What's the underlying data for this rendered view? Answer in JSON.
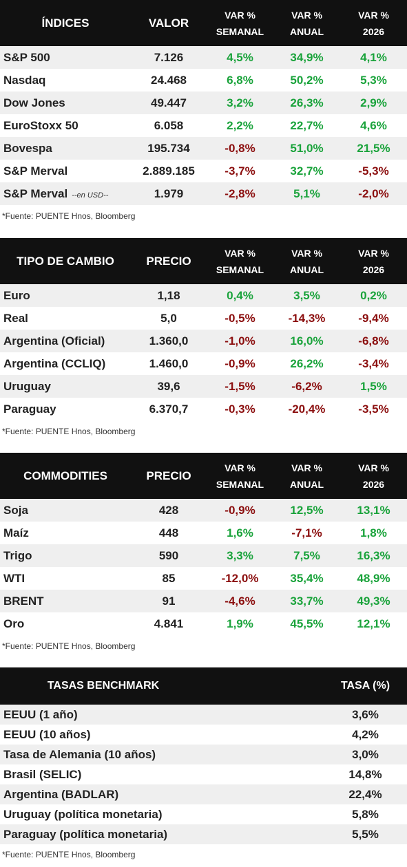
{
  "colors": {
    "header_bg": "#111111",
    "positive": "#1aa33b",
    "negative": "#8b0e0e",
    "stripe": "#efefef"
  },
  "indices": {
    "headers": [
      "ÍNDICES",
      "VALOR",
      "VAR %",
      "SEMANAL",
      "VAR %",
      "ANUAL",
      "VAR %",
      "2026"
    ],
    "rows": [
      {
        "name": "S&P 500",
        "note": "",
        "value": "7.126",
        "weekly": "4,5%",
        "annual": "34,9%",
        "ytd": "4,1%"
      },
      {
        "name": "Nasdaq",
        "note": "",
        "value": "24.468",
        "weekly": "6,8%",
        "annual": "50,2%",
        "ytd": "5,3%"
      },
      {
        "name": "Dow Jones",
        "note": "",
        "value": "49.447",
        "weekly": "3,2%",
        "annual": "26,3%",
        "ytd": "2,9%"
      },
      {
        "name": "EuroStoxx 50",
        "note": "",
        "value": "6.058",
        "weekly": "2,2%",
        "annual": "22,7%",
        "ytd": "4,6%"
      },
      {
        "name": "Bovespa",
        "note": "",
        "value": "195.734",
        "weekly": "-0,8%",
        "annual": "51,0%",
        "ytd": "21,5%"
      },
      {
        "name": "S&P Merval",
        "note": "",
        "value": "2.889.185",
        "weekly": "-3,7%",
        "annual": "32,7%",
        "ytd": "-5,3%"
      },
      {
        "name": "S&P Merval",
        "note": "--en USD--",
        "value": "1.979",
        "weekly": "-2,8%",
        "annual": "5,1%",
        "ytd": "-2,0%"
      }
    ],
    "source": "*Fuente: PUENTE Hnos, Bloomberg"
  },
  "fx": {
    "headers": [
      "TIPO DE CAMBIO",
      "PRECIO",
      "VAR %",
      "SEMANAL",
      "VAR %",
      "ANUAL",
      "VAR %",
      "2026"
    ],
    "rows": [
      {
        "name": "Euro",
        "value": "1,18",
        "weekly": "0,4%",
        "annual": "3,5%",
        "ytd": "0,2%"
      },
      {
        "name": "Real",
        "value": "5,0",
        "weekly": "-0,5%",
        "annual": "-14,3%",
        "ytd": "-9,4%"
      },
      {
        "name": "Argentina (Oficial)",
        "value": "1.360,0",
        "weekly": "-1,0%",
        "annual": "16,0%",
        "ytd": "-6,8%"
      },
      {
        "name": "Argentina (CCLIQ)",
        "value": "1.460,0",
        "weekly": "-0,9%",
        "annual": "26,2%",
        "ytd": "-3,4%"
      },
      {
        "name": "Uruguay",
        "value": "39,6",
        "weekly": "-1,5%",
        "annual": "-6,2%",
        "ytd": "1,5%"
      },
      {
        "name": "Paraguay",
        "value": "6.370,7",
        "weekly": "-0,3%",
        "annual": "-20,4%",
        "ytd": "-3,5%"
      }
    ],
    "source": "*Fuente: PUENTE Hnos, Bloomberg"
  },
  "commodities": {
    "headers": [
      "COMMODITIES",
      "PRECIO",
      "VAR %",
      "SEMANAL",
      "VAR %",
      "ANUAL",
      "VAR %",
      "2026"
    ],
    "rows": [
      {
        "name": "Soja",
        "value": "428",
        "weekly": "-0,9%",
        "annual": "12,5%",
        "ytd": "13,1%"
      },
      {
        "name": "Maíz",
        "value": "448",
        "weekly": "1,6%",
        "annual": "-7,1%",
        "ytd": "1,8%"
      },
      {
        "name": "Trigo",
        "value": "590",
        "weekly": "3,3%",
        "annual": "7,5%",
        "ytd": "16,3%"
      },
      {
        "name": "WTI",
        "value": "85",
        "weekly": "-12,0%",
        "annual": "35,4%",
        "ytd": "48,9%"
      },
      {
        "name": "BRENT",
        "value": "91",
        "weekly": "-4,6%",
        "annual": "33,7%",
        "ytd": "49,3%"
      },
      {
        "name": "Oro",
        "value": "4.841",
        "weekly": "1,9%",
        "annual": "45,5%",
        "ytd": "12,1%"
      }
    ],
    "source": "*Fuente: PUENTE Hnos, Bloomberg"
  },
  "benchmark": {
    "headers": [
      "TASAS BENCHMARK",
      "TASA (%)"
    ],
    "rows": [
      {
        "name": "EEUU (1 año)",
        "rate": "3,6%"
      },
      {
        "name": "EEUU (10 años)",
        "rate": "4,2%"
      },
      {
        "name": "Tasa de Alemania (10 años)",
        "rate": "3,0%"
      },
      {
        "name": "Brasil (SELIC)",
        "rate": "14,8%"
      },
      {
        "name": "Argentina (BADLAR)",
        "rate": "22,4%"
      },
      {
        "name": "Uruguay (política monetaria)",
        "rate": "5,8%"
      },
      {
        "name": "Paraguay (política monetaria)",
        "rate": "5,5%"
      }
    ],
    "source": "*Fuente: PUENTE Hnos, Bloomberg"
  }
}
